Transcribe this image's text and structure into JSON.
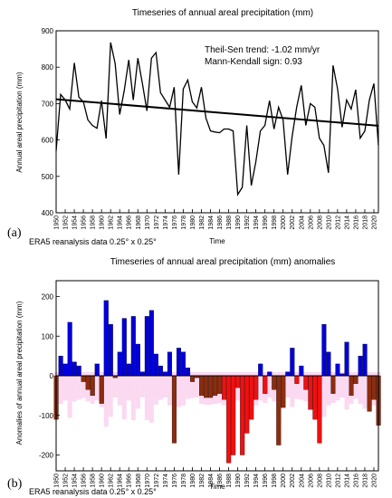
{
  "chart_data": [
    {
      "type": "line",
      "panel_label": "(a)",
      "title": "Timeseries of annual areal precipitation (mm)",
      "xlabel": "Time",
      "ylabel": "Annual areal precipitation (mm)",
      "source_note": "ERA5 reanalysis data 0.25° x 0.25°",
      "ylim": [
        400,
        900
      ],
      "yticks": [
        400,
        500,
        600,
        700,
        800,
        900
      ],
      "xlim": [
        1950,
        2021
      ],
      "xtick_labels": [
        "1950",
        "1952",
        "1954",
        "1956",
        "1958",
        "1960",
        "1962",
        "1964",
        "1966",
        "1968",
        "1970",
        "1972",
        "1974",
        "1976",
        "1978",
        "1980",
        "1982",
        "1984",
        "1986",
        "1988",
        "1990",
        "1992",
        "1994",
        "1996",
        "1998",
        "2000",
        "2002",
        "2004",
        "2006",
        "2008",
        "2010",
        "2012",
        "2014",
        "2016",
        "2018",
        "2020"
      ],
      "grid": false,
      "annotations": [
        "Theil-Sen trend: -1.02 mm/yr",
        "Mann-Kendall sign: 0.93"
      ],
      "trend": {
        "x": [
          1950,
          2021
        ],
        "y": [
          712,
          639
        ]
      },
      "series": [
        {
          "x": [
            1950,
            1951,
            1952,
            1953,
            1954,
            1955,
            1956,
            1957,
            1958,
            1959,
            1960,
            1961,
            1962,
            1963,
            1964,
            1965,
            1966,
            1967,
            1968,
            1969,
            1970,
            1971,
            1972,
            1973,
            1974,
            1975,
            1976,
            1977,
            1978,
            1979,
            1980,
            1981,
            1982,
            1983,
            1984,
            1985,
            1986,
            1987,
            1988,
            1989,
            1990,
            1991,
            1992,
            1993,
            1994,
            1995,
            1996,
            1997,
            1998,
            1999,
            2000,
            2001,
            2002,
            2003,
            2004,
            2005,
            2006,
            2007,
            2008,
            2009,
            2010,
            2011,
            2012,
            2013,
            2014,
            2015,
            2016,
            2017,
            2018,
            2019,
            2020,
            2021
          ],
          "values": [
            570,
            725,
            710,
            685,
            812,
            718,
            705,
            655,
            640,
            632,
            708,
            604,
            868,
            810,
            670,
            735,
            820,
            710,
            825,
            755,
            680,
            825,
            840,
            730,
            710,
            690,
            745,
            505,
            740,
            765,
            705,
            688,
            745,
            660,
            625,
            622,
            620,
            630,
            630,
            625,
            450,
            470,
            640,
            475,
            540,
            625,
            640,
            708,
            630,
            690,
            655,
            505,
            610,
            690,
            750,
            640,
            700,
            690,
            605,
            585,
            510,
            805,
            740,
            635,
            710,
            685,
            738,
            605,
            625,
            710,
            755,
            585
          ]
        }
      ]
    },
    {
      "type": "bar",
      "panel_label": "(b)",
      "title": "Timeseries of annual areal precipitation (mm) anomalies",
      "xlabel": "Time",
      "ylabel": "Anomalies of annual areal precipitation (mm)",
      "source_note": "ERA5 reanalysis data 0.25° x 0.25°",
      "ylim": [
        -240,
        240
      ],
      "yticks": [
        -200,
        -100,
        0,
        100,
        200
      ],
      "xlim": [
        1950,
        2021
      ],
      "xtick_labels": [
        "1950",
        "1952",
        "1954",
        "1956",
        "1958",
        "1960",
        "1962",
        "1964",
        "1966",
        "1968",
        "1970",
        "1972",
        "1974",
        "1976",
        "1978",
        "1980",
        "1982",
        "1984",
        "1986",
        "1988",
        "1990",
        "1992",
        "1994",
        "1996",
        "1998",
        "2000",
        "2002",
        "2004",
        "2006",
        "2008",
        "2010",
        "2012",
        "2014",
        "2016",
        "2018",
        "2020"
      ],
      "grid": false,
      "colors": {
        "positive": "#0000dd",
        "negative_early": "#8b2d10",
        "negative_late": "#ee1111",
        "envelope": "#f9d2ee"
      },
      "x": [
        1950,
        1951,
        1952,
        1953,
        1954,
        1955,
        1956,
        1957,
        1958,
        1959,
        1960,
        1961,
        1962,
        1963,
        1964,
        1965,
        1966,
        1967,
        1968,
        1969,
        1970,
        1971,
        1972,
        1973,
        1974,
        1975,
        1976,
        1977,
        1978,
        1979,
        1980,
        1981,
        1982,
        1983,
        1984,
        1985,
        1986,
        1987,
        1988,
        1989,
        1990,
        1991,
        1992,
        1993,
        1994,
        1995,
        1996,
        1997,
        1998,
        1999,
        2000,
        2001,
        2002,
        2003,
        2004,
        2005,
        2006,
        2007,
        2008,
        2009,
        2010,
        2011,
        2012,
        2013,
        2014,
        2015,
        2016,
        2017,
        2018,
        2019,
        2020,
        2021
      ],
      "values": [
        -110,
        50,
        30,
        135,
        35,
        25,
        -15,
        -35,
        -50,
        30,
        -70,
        190,
        130,
        -5,
        60,
        145,
        30,
        150,
        80,
        10,
        150,
        165,
        55,
        25,
        10,
        60,
        -170,
        70,
        60,
        20,
        -15,
        -5,
        -50,
        -55,
        -55,
        -50,
        -45,
        -60,
        -220,
        -200,
        -30,
        -200,
        -145,
        -110,
        -60,
        30,
        -45,
        10,
        -35,
        -175,
        -80,
        10,
        70,
        -20,
        25,
        -35,
        -85,
        -110,
        -170,
        130,
        60,
        -45,
        30,
        5,
        85,
        -50,
        -20,
        50,
        80,
        -90,
        -60,
        -125
      ]
    }
  ]
}
